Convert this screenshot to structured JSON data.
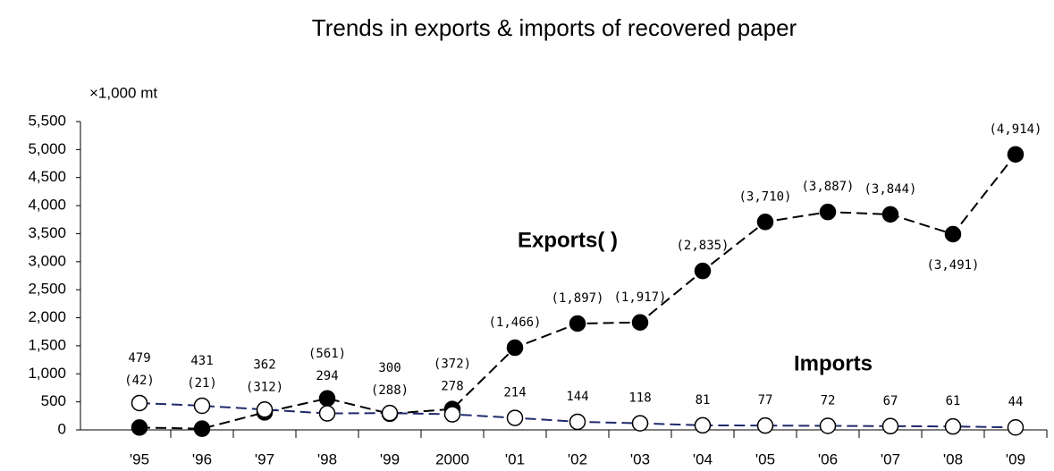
{
  "chart_data": {
    "type": "line",
    "title": "Trends in exports & imports of recovered paper",
    "y_label": "×1,000 mt",
    "annotations": [
      "Exports( )",
      "Imports"
    ],
    "categories": [
      "'95",
      "'96",
      "'97",
      "'98",
      "'99",
      "2000",
      "'01",
      "'02",
      "'03",
      "'04",
      "'05",
      "'06",
      "'07",
      "'08",
      "'09"
    ],
    "series": [
      {
        "name": "Exports",
        "color": "#000000",
        "marker_fill": "#000000",
        "values": [
          42,
          21,
          312,
          561,
          288,
          372,
          1466,
          1897,
          1917,
          2835,
          3710,
          3887,
          3844,
          3491,
          4914
        ],
        "value_labels": [
          "(42)",
          "(21)",
          "(312)",
          "(561)",
          "(288)",
          "(372)",
          "(1,466)",
          "(1,897)",
          "(1,917)",
          "(2,835)",
          "(3,710)",
          "(3,887)",
          "(3,844)",
          "(3,491)",
          "(4,914)"
        ]
      },
      {
        "name": "Imports",
        "color": "#1f2a6b",
        "marker_fill": "#ffffff",
        "values": [
          479,
          431,
          362,
          294,
          300,
          278,
          214,
          144,
          118,
          81,
          77,
          72,
          67,
          61,
          44
        ]
      }
    ],
    "ylim": [
      0,
      5500
    ],
    "yticks": [
      0,
      500,
      {
        "value": 1000,
        "label": "1,000"
      },
      {
        "value": 1500,
        "label": "1,500"
      },
      {
        "value": 2000,
        "label": "2,000"
      },
      {
        "value": 2500,
        "label": "2,500"
      },
      {
        "value": 3000,
        "label": "3,000"
      },
      {
        "value": 3500,
        "label": "3,500"
      },
      {
        "value": 4000,
        "label": "4,000"
      },
      {
        "value": 4500,
        "label": "4,500"
      },
      {
        "value": 5000,
        "label": "5,000"
      },
      {
        "value": 5500,
        "label": "5,500"
      }
    ]
  }
}
